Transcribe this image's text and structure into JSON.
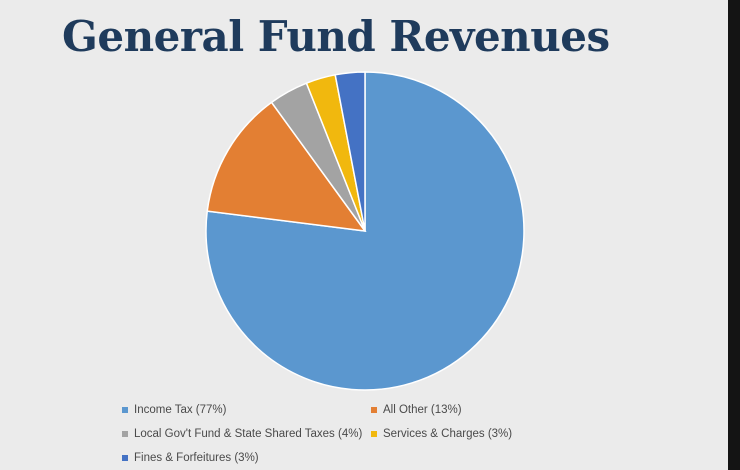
{
  "slide": {
    "title": "General Fund Revenues"
  },
  "chart_data": {
    "type": "pie",
    "title": "General Fund Revenues",
    "categories": [
      "Income Tax",
      "All Other",
      "Local Gov't Fund & State Shared Taxes",
      "Services & Charges",
      "Fines & Forfeitures"
    ],
    "values": [
      77,
      13,
      4,
      3,
      3
    ],
    "colors": [
      "#5b97cf",
      "#e37f33",
      "#a3a3a3",
      "#f1b80e",
      "#4472c4"
    ],
    "legend_labels": [
      "Income Tax (77%)",
      "All Other (13%)",
      "Local Gov't Fund & State Shared Taxes (4%)",
      "Services & Charges (3%)",
      "Fines & Forfeitures (3%)"
    ],
    "legend_position": "bottom"
  }
}
